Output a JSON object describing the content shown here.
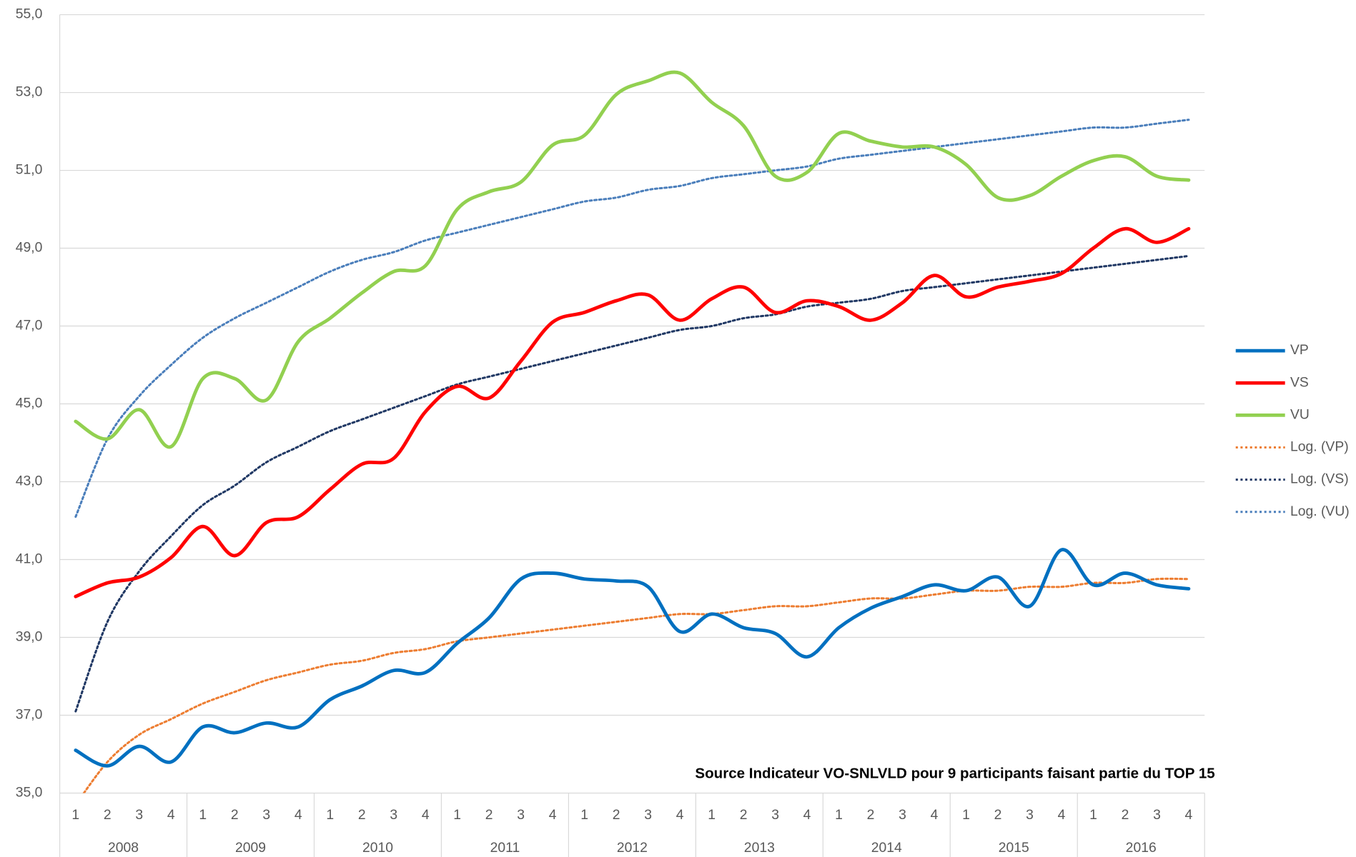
{
  "chart_data": {
    "type": "line",
    "annotation": "Source Indicateur VO-SNLVLD pour 9 participants faisant partie du TOP 15",
    "categories": [
      "1",
      "2",
      "3",
      "4",
      "1",
      "2",
      "3",
      "4",
      "1",
      "2",
      "3",
      "4",
      "1",
      "2",
      "3",
      "4",
      "1",
      "2",
      "3",
      "4",
      "1",
      "2",
      "3",
      "4",
      "1",
      "2",
      "3",
      "4",
      "1",
      "2",
      "3",
      "4",
      "1",
      "2",
      "3",
      "4"
    ],
    "category_groups": [
      "2008",
      "2009",
      "2010",
      "2011",
      "2012",
      "2013",
      "2014",
      "2015",
      "2016"
    ],
    "ylim": [
      35,
      55
    ],
    "yticks": [
      {
        "value": 35,
        "label": "35,0"
      },
      {
        "value": 37,
        "label": "37,0"
      },
      {
        "value": 39,
        "label": "39,0"
      },
      {
        "value": 41,
        "label": "41,0"
      },
      {
        "value": 43,
        "label": "43,0"
      },
      {
        "value": 45,
        "label": "45,0"
      },
      {
        "value": 47,
        "label": "47,0"
      },
      {
        "value": 49,
        "label": "49,0"
      },
      {
        "value": 51,
        "label": "51,0"
      },
      {
        "value": 53,
        "label": "53,0"
      },
      {
        "value": 55,
        "label": "55,0"
      }
    ],
    "grid": true,
    "legend": "right",
    "series": [
      {
        "name": "VP",
        "color": "#0070c0",
        "style": "solid",
        "values": [
          36.1,
          35.7,
          36.2,
          35.8,
          36.7,
          36.55,
          36.8,
          36.7,
          37.4,
          37.75,
          38.15,
          38.1,
          38.85,
          39.5,
          40.5,
          40.65,
          40.5,
          40.45,
          40.3,
          39.15,
          39.6,
          39.25,
          39.1,
          38.5,
          39.25,
          39.75,
          40.05,
          40.35,
          40.2,
          40.55,
          39.8,
          41.25,
          40.35,
          40.65,
          40.35,
          40.25
        ]
      },
      {
        "name": "VS",
        "color": "#ff0000",
        "style": "solid",
        "values": [
          40.05,
          40.4,
          40.55,
          41.05,
          41.85,
          41.1,
          41.95,
          42.1,
          42.8,
          43.45,
          43.6,
          44.8,
          45.45,
          45.15,
          46.1,
          47.1,
          47.35,
          47.65,
          47.8,
          47.15,
          47.7,
          48.0,
          47.35,
          47.65,
          47.5,
          47.15,
          47.6,
          48.3,
          47.75,
          48.0,
          48.15,
          48.35,
          49.0,
          49.5,
          49.15,
          49.5
        ]
      },
      {
        "name": "VU",
        "color": "#92d050",
        "style": "solid",
        "values": [
          44.55,
          44.1,
          44.85,
          43.9,
          45.65,
          45.65,
          45.1,
          46.6,
          47.2,
          47.85,
          48.4,
          48.55,
          50.0,
          50.45,
          50.7,
          51.65,
          51.9,
          52.95,
          53.3,
          53.5,
          52.75,
          52.15,
          50.85,
          50.95,
          51.95,
          51.75,
          51.6,
          51.6,
          51.15,
          50.3,
          50.35,
          50.85,
          51.25,
          51.35,
          50.85,
          50.75
        ]
      },
      {
        "name": "Log. (VP)",
        "color": "#ed7d31",
        "style": "dotted",
        "values": [
          34.7,
          35.8,
          36.5,
          36.9,
          37.3,
          37.6,
          37.9,
          38.1,
          38.3,
          38.4,
          38.6,
          38.7,
          38.9,
          39.0,
          39.1,
          39.2,
          39.3,
          39.4,
          39.5,
          39.6,
          39.6,
          39.7,
          39.8,
          39.8,
          39.9,
          40.0,
          40.0,
          40.1,
          40.2,
          40.2,
          40.3,
          40.3,
          40.4,
          40.4,
          40.5,
          40.5
        ]
      },
      {
        "name": "Log. (VS)",
        "color": "#203864",
        "style": "dotted",
        "values": [
          37.1,
          39.4,
          40.7,
          41.6,
          42.4,
          42.9,
          43.5,
          43.9,
          44.3,
          44.6,
          44.9,
          45.2,
          45.5,
          45.7,
          45.9,
          46.1,
          46.3,
          46.5,
          46.7,
          46.9,
          47.0,
          47.2,
          47.3,
          47.5,
          47.6,
          47.7,
          47.9,
          48.0,
          48.1,
          48.2,
          48.3,
          48.4,
          48.5,
          48.6,
          48.7,
          48.8
        ]
      },
      {
        "name": "Log. (VU)",
        "color": "#4a7ebb",
        "style": "dotted",
        "values": [
          42.1,
          44.1,
          45.2,
          46.0,
          46.7,
          47.2,
          47.6,
          48.0,
          48.4,
          48.7,
          48.9,
          49.2,
          49.4,
          49.6,
          49.8,
          50.0,
          50.2,
          50.3,
          50.5,
          50.6,
          50.8,
          50.9,
          51.0,
          51.1,
          51.3,
          51.4,
          51.5,
          51.6,
          51.7,
          51.8,
          51.9,
          52.0,
          52.1,
          52.1,
          52.2,
          52.3
        ]
      }
    ]
  }
}
